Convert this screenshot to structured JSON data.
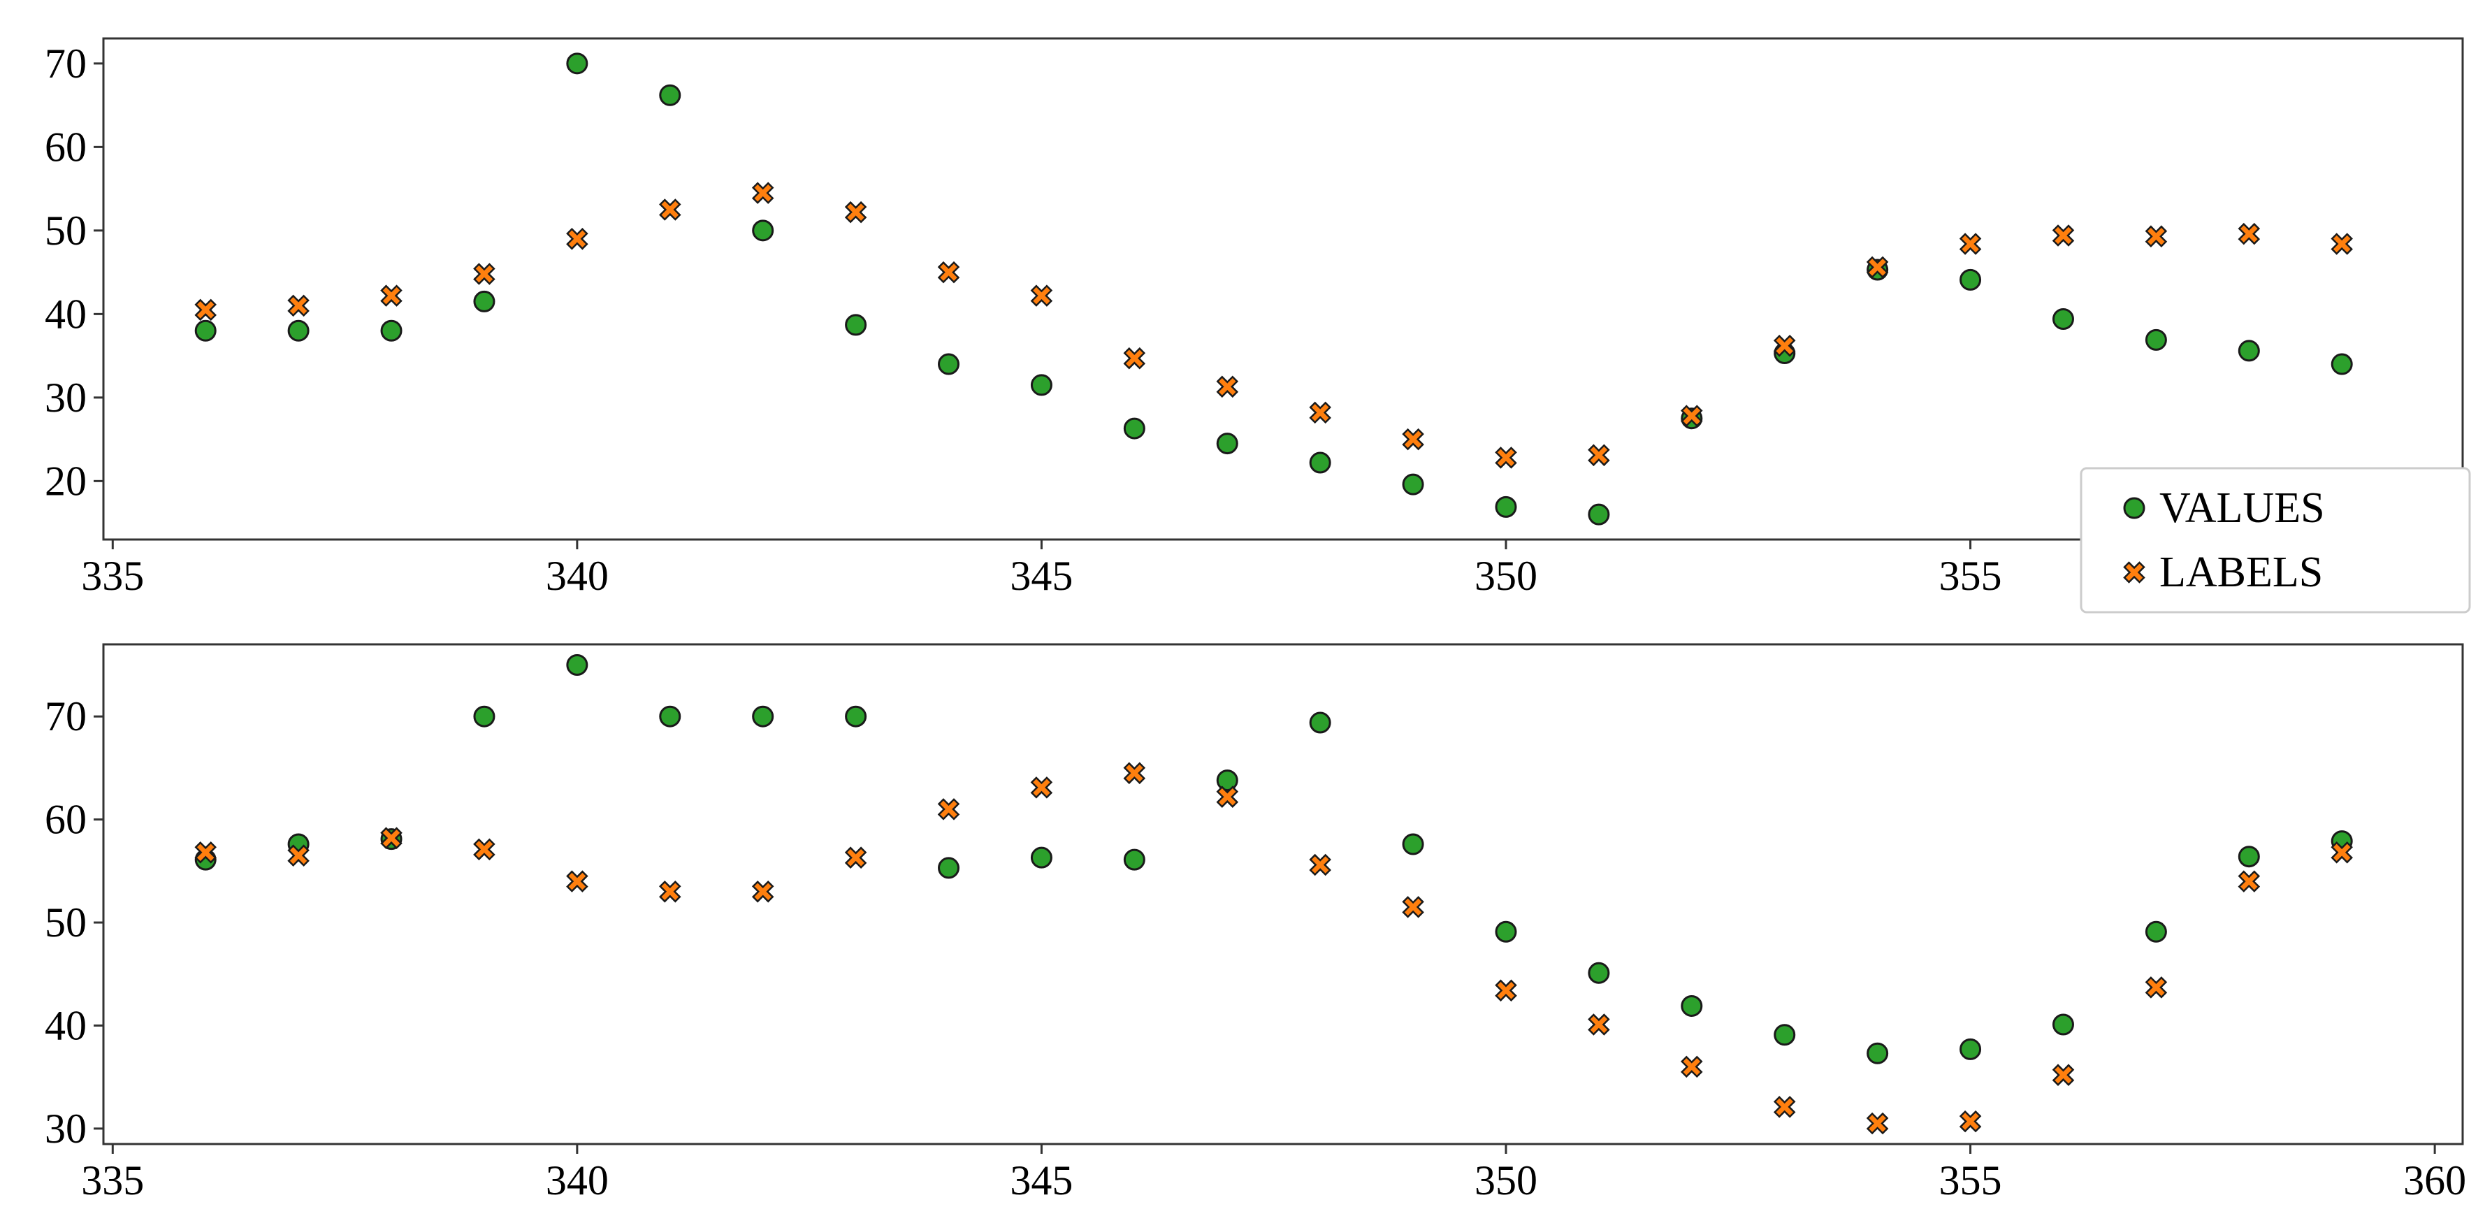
{
  "colors": {
    "values": "#2ca02c",
    "labels": "#ff7f0e",
    "marker_edge": "#1a1a1a",
    "axes": "#333333",
    "legend_border": "#cccccc"
  },
  "chart_data": [
    {
      "type": "scatter",
      "title": "",
      "xlabel": "",
      "ylabel": "",
      "xlim": [
        334.9,
        360.3
      ],
      "ylim": [
        13,
        73
      ],
      "xticks": [
        335,
        340,
        345,
        350,
        355
      ],
      "yticks": [
        20,
        30,
        40,
        50,
        60,
        70
      ],
      "grid": false,
      "legend": {
        "placement": "bottom-right",
        "entries": [
          "VALUES",
          "LABELS"
        ]
      },
      "x": [
        336,
        337,
        338,
        339,
        340,
        341,
        342,
        343,
        344,
        345,
        346,
        347,
        348,
        349,
        350,
        351,
        352,
        353,
        354,
        355,
        356,
        357,
        358,
        359
      ],
      "series": [
        {
          "name": "VALUES",
          "marker": "circle",
          "values": [
            38,
            38,
            38,
            41.5,
            70,
            66.2,
            50,
            38.7,
            34,
            31.5,
            26.3,
            24.5,
            22.2,
            19.6,
            16.9,
            16,
            27.5,
            35.3,
            45.3,
            44.1,
            39.4,
            36.9,
            35.6,
            34
          ]
        },
        {
          "name": "LABELS",
          "marker": "x",
          "values": [
            40.5,
            41,
            42.2,
            44.8,
            49,
            52.5,
            54.5,
            52.2,
            45,
            42.2,
            34.7,
            31.3,
            28.2,
            25,
            22.8,
            23.1,
            27.8,
            36.2,
            45.6,
            48.4,
            49.4,
            49.3,
            49.6,
            48.4
          ]
        }
      ]
    },
    {
      "type": "scatter",
      "title": "",
      "xlabel": "",
      "ylabel": "",
      "xlim": [
        334.9,
        360.3
      ],
      "ylim": [
        28.5,
        77
      ],
      "xticks": [
        335,
        340,
        345,
        350,
        355,
        360
      ],
      "yticks": [
        30,
        40,
        50,
        60,
        70
      ],
      "grid": false,
      "x": [
        336,
        337,
        338,
        339,
        340,
        341,
        342,
        343,
        344,
        345,
        346,
        347,
        348,
        349,
        350,
        351,
        352,
        353,
        354,
        355,
        356,
        357,
        358,
        359
      ],
      "series": [
        {
          "name": "VALUES",
          "marker": "circle",
          "values": [
            56.1,
            57.6,
            58.1,
            70,
            75,
            70,
            70,
            70,
            55.3,
            56.3,
            56.1,
            63.8,
            69.4,
            57.6,
            49.1,
            45.1,
            41.9,
            39.1,
            37.3,
            37.7,
            40.1,
            49.1,
            56.4,
            57.9
          ]
        },
        {
          "name": "LABELS",
          "marker": "x",
          "values": [
            56.8,
            56.5,
            58.2,
            57.1,
            54,
            53,
            53,
            56.3,
            61,
            63.1,
            64.5,
            62.2,
            55.6,
            51.5,
            43.4,
            40.1,
            36,
            32.1,
            30.5,
            30.7,
            35.2,
            43.7,
            54,
            56.8
          ]
        }
      ]
    }
  ]
}
